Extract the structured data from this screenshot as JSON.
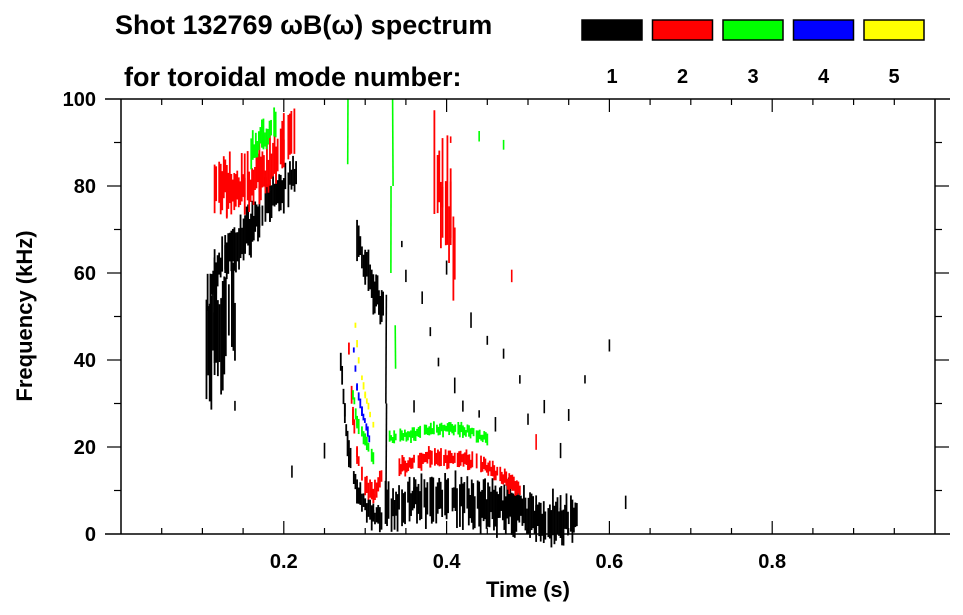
{
  "chart_data": {
    "type": "heatmap",
    "title_line1": "Shot 132769 ωB(ω) spectrum",
    "title_line2": "for toroidal mode number:",
    "xlabel": "Time (s)",
    "ylabel": "Frequency (kHz)",
    "xlim": [
      0,
      1.0
    ],
    "ylim": [
      0,
      100
    ],
    "xticks": [
      "0.2",
      "0.4",
      "0.6",
      "0.8"
    ],
    "xtick_values": [
      0.2,
      0.4,
      0.6,
      0.8
    ],
    "yticks": [
      "0",
      "20",
      "40",
      "60",
      "80",
      "100"
    ],
    "ytick_values": [
      0,
      20,
      40,
      60,
      80,
      100
    ],
    "legend": [
      {
        "mode": "1",
        "color": "#000000"
      },
      {
        "mode": "2",
        "color": "#ff0000"
      },
      {
        "mode": "3",
        "color": "#00ff00"
      },
      {
        "mode": "4",
        "color": "#0000ff"
      },
      {
        "mode": "5",
        "color": "#ffff00"
      }
    ],
    "tracks": [
      {
        "mode": 1,
        "width": 9,
        "points": [
          [
            0.103,
            52
          ],
          [
            0.115,
            58
          ],
          [
            0.128,
            64
          ],
          [
            0.145,
            67
          ],
          [
            0.158,
            70
          ],
          [
            0.17,
            73
          ],
          [
            0.183,
            76
          ],
          [
            0.2,
            80
          ],
          [
            0.217,
            84
          ]
        ]
      },
      {
        "mode": 1,
        "width": 22,
        "points": [
          [
            0.105,
            45
          ],
          [
            0.115,
            47
          ],
          [
            0.125,
            45
          ],
          [
            0.14,
            50
          ]
        ]
      },
      {
        "mode": 1,
        "width": 5,
        "points": [
          [
            0.27,
            40
          ],
          [
            0.275,
            28
          ],
          [
            0.28,
            18
          ],
          [
            0.29,
            10
          ],
          [
            0.3,
            6
          ],
          [
            0.31,
            4
          ],
          [
            0.32,
            3
          ]
        ]
      },
      {
        "mode": 1,
        "width": 9,
        "points": [
          [
            0.325,
            6
          ],
          [
            0.36,
            8
          ],
          [
            0.4,
            8
          ],
          [
            0.44,
            7
          ],
          [
            0.48,
            6
          ],
          [
            0.51,
            4
          ],
          [
            0.54,
            3
          ],
          [
            0.56,
            4
          ]
        ]
      },
      {
        "mode": 1,
        "width": 1.5,
        "points": [
          [
            0.326,
            4
          ],
          [
            0.326,
            30
          ],
          [
            0.326,
            55
          ]
        ]
      },
      {
        "mode": 1,
        "width": 8,
        "points": [
          [
            0.29,
            68
          ],
          [
            0.3,
            62
          ],
          [
            0.31,
            57
          ],
          [
            0.322,
            52
          ]
        ]
      },
      {
        "mode": 2,
        "width": 10,
        "points": [
          [
            0.115,
            79
          ],
          [
            0.13,
            80
          ],
          [
            0.152,
            80
          ],
          [
            0.17,
            82
          ],
          [
            0.183,
            84
          ],
          [
            0.2,
            89
          ],
          [
            0.213,
            95
          ]
        ]
      },
      {
        "mode": 2,
        "width": 22,
        "points": [
          [
            0.385,
            82
          ],
          [
            0.395,
            78
          ],
          [
            0.405,
            72
          ],
          [
            0.41,
            66
          ]
        ]
      },
      {
        "mode": 2,
        "width": 4,
        "points": [
          [
            0.28,
            42
          ],
          [
            0.285,
            28
          ],
          [
            0.29,
            18
          ],
          [
            0.3,
            12
          ],
          [
            0.31,
            9
          ],
          [
            0.32,
            14
          ]
        ]
      },
      {
        "mode": 2,
        "width": 3.5,
        "points": [
          [
            0.342,
            15
          ],
          [
            0.36,
            17
          ],
          [
            0.38,
            18
          ],
          [
            0.41,
            17
          ],
          [
            0.428,
            17
          ],
          [
            0.453,
            15
          ],
          [
            0.477,
            12
          ],
          [
            0.49,
            10
          ]
        ]
      },
      {
        "mode": 3,
        "width": 6,
        "points": [
          [
            0.16,
            88
          ],
          [
            0.175,
            91
          ],
          [
            0.19,
            95
          ]
        ]
      },
      {
        "mode": 3,
        "width": 3,
        "points": [
          [
            0.285,
            32
          ],
          [
            0.29,
            26
          ],
          [
            0.3,
            21
          ],
          [
            0.31,
            18
          ]
        ]
      },
      {
        "mode": 3,
        "width": 2.5,
        "points": [
          [
            0.33,
            22
          ],
          [
            0.36,
            23
          ],
          [
            0.39,
            24
          ],
          [
            0.42,
            24
          ],
          [
            0.45,
            22
          ]
        ]
      },
      {
        "mode": 3,
        "width": 1.2,
        "points": [
          [
            0.279,
            85
          ],
          [
            0.279,
            100
          ]
        ]
      },
      {
        "mode": 3,
        "width": 1.2,
        "points": [
          [
            0.332,
            60
          ],
          [
            0.334,
            80
          ],
          [
            0.336,
            100
          ]
        ]
      },
      {
        "mode": 3,
        "width": 1.2,
        "points": [
          [
            0.337,
            38
          ],
          [
            0.339,
            48
          ]
        ]
      },
      {
        "mode": 4,
        "width": 2,
        "points": [
          [
            0.286,
            42
          ],
          [
            0.29,
            34
          ],
          [
            0.296,
            28
          ],
          [
            0.305,
            22
          ]
        ]
      },
      {
        "mode": 5,
        "width": 1.5,
        "points": [
          [
            0.288,
            48
          ],
          [
            0.292,
            40
          ],
          [
            0.3,
            32
          ],
          [
            0.31,
            25
          ]
        ]
      }
    ],
    "speckles": [
      [
        0.35,
        60,
        1
      ],
      [
        0.37,
        55,
        1
      ],
      [
        0.39,
        40,
        1
      ],
      [
        0.41,
        35,
        1
      ],
      [
        0.42,
        30,
        1
      ],
      [
        0.44,
        28,
        1
      ],
      [
        0.46,
        26,
        1
      ],
      [
        0.47,
        42,
        1
      ],
      [
        0.5,
        27,
        1
      ],
      [
        0.52,
        30,
        1
      ],
      [
        0.54,
        20,
        1
      ],
      [
        0.57,
        36,
        1
      ],
      [
        0.6,
        44,
        1
      ],
      [
        0.36,
        30,
        1
      ],
      [
        0.38,
        47,
        1
      ],
      [
        0.43,
        50,
        1
      ],
      [
        0.25,
        20,
        1
      ],
      [
        0.21,
        15,
        1
      ],
      [
        0.14,
        30,
        1
      ],
      [
        0.62,
        8,
        1
      ],
      [
        0.45,
        45,
        1
      ],
      [
        0.49,
        36,
        1
      ],
      [
        0.4,
        62,
        1
      ],
      [
        0.345,
        67,
        1
      ],
      [
        0.51,
        22,
        2
      ],
      [
        0.48,
        60,
        2
      ],
      [
        0.44,
        92,
        3
      ],
      [
        0.47,
        90,
        3
      ],
      [
        0.405,
        91,
        2
      ],
      [
        0.55,
        28,
        1
      ]
    ]
  }
}
